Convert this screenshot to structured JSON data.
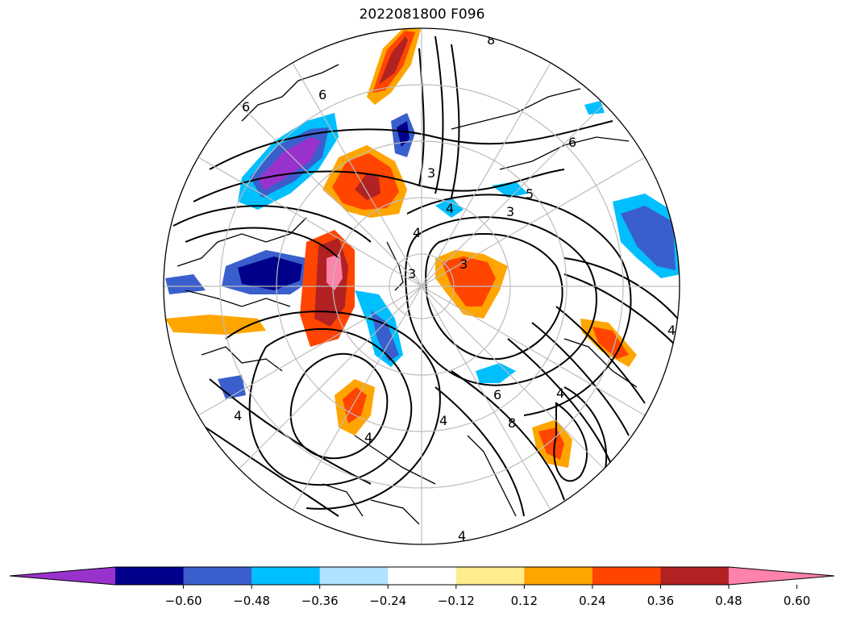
{
  "title": "2022081800 F096",
  "colorbar": {
    "colors": [
      "#9932cc",
      "#00008b",
      "#3a5fcd",
      "#00bfff",
      "#b0e2ff",
      "#ffffff",
      "#ffec8b",
      "#ffa500",
      "#ff4500",
      "#b22222",
      "#ff82ab"
    ],
    "tick_labels": [
      "−0.60",
      "−0.48",
      "−0.36",
      "−0.24",
      "−0.12",
      "0.12",
      "0.24",
      "0.36",
      "0.48",
      "0.60"
    ],
    "extend": "both"
  },
  "contour_labels": [
    "8",
    "6",
    "6",
    "6",
    "5",
    "3",
    "4",
    "3",
    "3",
    "3",
    "4",
    "4",
    "6",
    "4",
    "4",
    "4",
    "8",
    "4",
    "4"
  ]
}
